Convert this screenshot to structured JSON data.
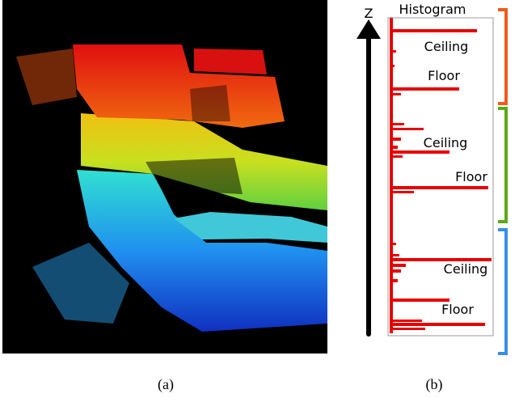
{
  "panel_a": {
    "caption": "(a)"
  },
  "panel_b": {
    "caption": "(b)",
    "axis_label": "Z",
    "title": "Histogram",
    "labels": [
      "Ceiling",
      "Floor",
      "Ceiling",
      "Floor",
      "Ceiling",
      "Floor"
    ]
  }
}
